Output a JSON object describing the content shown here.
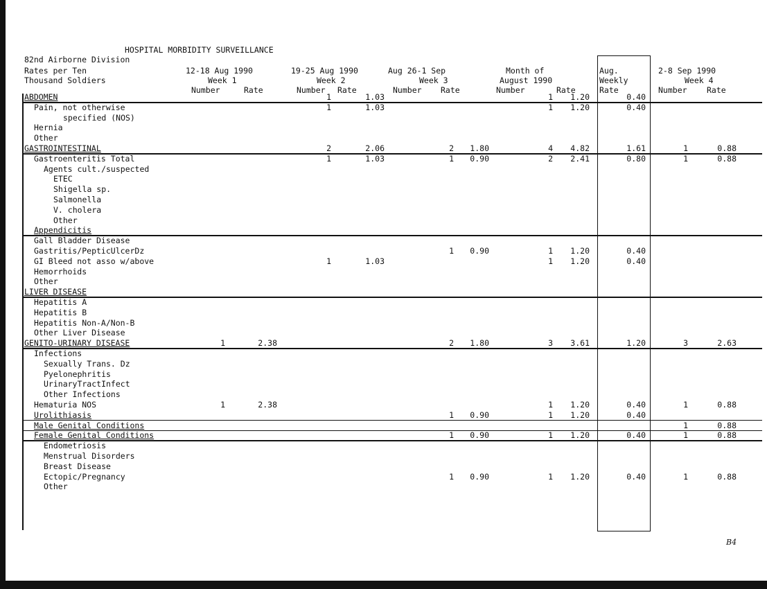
{
  "header": {
    "title": "HOSPITAL MORBIDITY SURVEILLANCE",
    "unit": "82nd Airborne Division"
  },
  "columns": {
    "label": [
      "Rates per Ten",
      "Thousand Soldiers"
    ],
    "week1": {
      "dates": "12-18 Aug 1990",
      "week": "Week 1",
      "number": "Number",
      "rate": "Rate"
    },
    "week2": {
      "dates": "19-25 Aug 1990",
      "week": "Week 2",
      "number": "Number",
      "rate": "Rate"
    },
    "week3": {
      "dates": "Aug 26-1 Sep",
      "week": "Week 3",
      "number": "Number",
      "rate": "Rate"
    },
    "month": {
      "dates": "Month of",
      "week": "August 1990",
      "number": "Number",
      "rate": "Rate"
    },
    "weekly": {
      "l1": "Aug.",
      "l2": "Weekly",
      "l3": "Rate"
    },
    "week4": {
      "dates": "2-8 Sep 1990",
      "week": "Week 4",
      "number": "Number",
      "rate": "Rate"
    }
  },
  "rows": [
    {
      "label": "ABDOMEN",
      "indent": 0,
      "category": true,
      "w2n": "1",
      "w2r": "1.03",
      "mn": "1",
      "mr": "1.20",
      "wk": "0.40"
    },
    {
      "label": "Pain, not otherwise",
      "indent": 2,
      "w2n": "1",
      "w2r": "1.03",
      "mn": "1",
      "mr": "1.20",
      "wk": "0.40"
    },
    {
      "label": "specified (NOS)",
      "indent": 8
    },
    {
      "label": "Hernia",
      "indent": 2
    },
    {
      "label": "Other",
      "indent": 2
    },
    {
      "label": "GASTROINTESTINAL",
      "indent": 0,
      "category": true,
      "w2n": "2",
      "w2r": "2.06",
      "w3n": "2",
      "w3r": "1.80",
      "mn": "4",
      "mr": "4.82",
      "wk": "1.61",
      "w4n": "1",
      "w4r": "0.88"
    },
    {
      "label": "Gastroenteritis Total",
      "indent": 2,
      "w2n": "1",
      "w2r": "1.03",
      "w3n": "1",
      "w3r": "0.90",
      "mn": "2",
      "mr": "2.41",
      "wk": "0.80",
      "w4n": "1",
      "w4r": "0.88"
    },
    {
      "label": "Agents cult./suspected",
      "indent": 4
    },
    {
      "label": "ETEC",
      "indent": 6
    },
    {
      "label": "Shigella sp.",
      "indent": 6
    },
    {
      "label": "Salmonella",
      "indent": 6
    },
    {
      "label": "V. cholera",
      "indent": 6
    },
    {
      "label": "Other",
      "indent": 6
    },
    {
      "label": "Appendicitis",
      "indent": 2,
      "underline": true
    },
    {
      "label": "Gall Bladder Disease",
      "indent": 2
    },
    {
      "label": "Gastritis/PepticUlcerDz",
      "indent": 2,
      "w3n": "1",
      "w3r": "0.90",
      "mn": "1",
      "mr": "1.20",
      "wk": "0.40"
    },
    {
      "label": "GI Bleed not asso w/above",
      "indent": 2,
      "w2n": "1",
      "w2r": "1.03",
      "mn": "1",
      "mr": "1.20",
      "wk": "0.40"
    },
    {
      "label": "Hemorrhoids",
      "indent": 2
    },
    {
      "label": "Other",
      "indent": 2
    },
    {
      "label": "LIVER DISEASE",
      "indent": 0,
      "category": true
    },
    {
      "label": "Hepatitis A",
      "indent": 2
    },
    {
      "label": "Hepatitis B",
      "indent": 2
    },
    {
      "label": "Hepatitis Non-A/Non-B",
      "indent": 2
    },
    {
      "label": "Other Liver Disease",
      "indent": 2
    },
    {
      "label": "GENITO-URINARY DISEASE",
      "indent": 0,
      "category": true,
      "w1n": "1",
      "w1r": "2.38",
      "w3n": "2",
      "w3r": "1.80",
      "mn": "3",
      "mr": "3.61",
      "wk": "1.20",
      "w4n": "3",
      "w4r": "2.63"
    },
    {
      "label": "Infections",
      "indent": 2
    },
    {
      "label": "Sexually Trans. Dz",
      "indent": 4
    },
    {
      "label": "Pyelonephritis",
      "indent": 4
    },
    {
      "label": "UrinaryTractInfect",
      "indent": 4
    },
    {
      "label": "Other Infections",
      "indent": 4
    },
    {
      "label": "Hematuria NOS",
      "indent": 2,
      "w1n": "1",
      "w1r": "2.38",
      "mn": "1",
      "mr": "1.20",
      "wk": "0.40",
      "w4n": "1",
      "w4r": "0.88"
    },
    {
      "label": "Urolithiasis",
      "indent": 2,
      "underline": true,
      "w3n": "1",
      "w3r": "0.90",
      "mn": "1",
      "mr": "1.20",
      "wk": "0.40"
    },
    {
      "label": "Male Genital Conditions",
      "indent": 2,
      "underline": true,
      "w4n": "1",
      "w4r": "0.88"
    },
    {
      "label": "Female Genital Conditions",
      "indent": 2,
      "underline": true,
      "w3n": "1",
      "w3r": "0.90",
      "mn": "1",
      "mr": "1.20",
      "wk": "0.40",
      "w4n": "1",
      "w4r": "0.88"
    },
    {
      "label": "Endometriosis",
      "indent": 4
    },
    {
      "label": "Menstrual Disorders",
      "indent": 4
    },
    {
      "label": "Breast Disease",
      "indent": 4
    },
    {
      "label": "Ectopic/Pregnancy",
      "indent": 4,
      "w3n": "1",
      "w3r": "0.90",
      "mn": "1",
      "mr": "1.20",
      "wk": "0.40",
      "w4n": "1",
      "w4r": "0.88"
    },
    {
      "label": "Other",
      "indent": 4
    }
  ],
  "page_mark": "B4"
}
